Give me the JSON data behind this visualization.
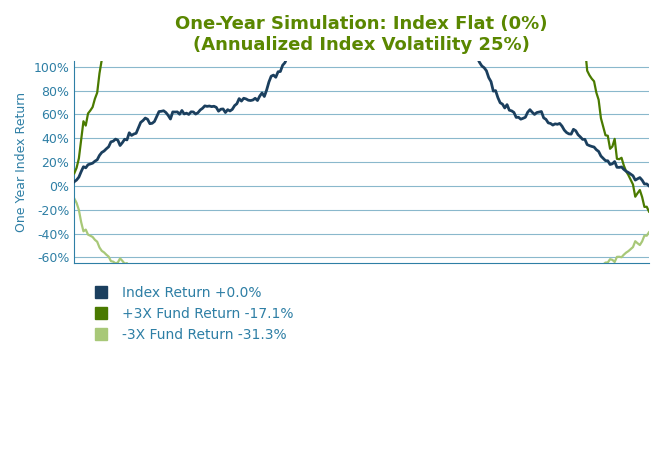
{
  "title_line1": "One-Year Simulation: Index Flat (0%)",
  "title_line2": "(Annualized Index Volatility 25%)",
  "title_color": "#5a8700",
  "ylabel": "One Year Index Return",
  "ylabel_color": "#2e7fa5",
  "index_color": "#1b3f5e",
  "plus3x_color": "#4a7a00",
  "minus3x_color": "#a8c878",
  "index_label": "Index Return +0.0%",
  "plus3x_label": "+3X Fund Return -17.1%",
  "minus3x_label": "-3X Fund Return -31.3%",
  "ylim_min": -0.65,
  "ylim_max": 1.05,
  "yticks": [
    -0.6,
    -0.4,
    -0.2,
    0.0,
    0.2,
    0.4,
    0.6,
    0.8,
    1.0
  ],
  "grid_color": "#8ab8cc",
  "background_color": "#ffffff",
  "axis_color": "#2e7fa5",
  "tick_color": "#2e7fa5",
  "index_lw": 2.0,
  "plus3x_lw": 1.6,
  "minus3x_lw": 1.6,
  "legend_fontsize": 10,
  "title_fontsize": 13,
  "ylabel_fontsize": 9
}
